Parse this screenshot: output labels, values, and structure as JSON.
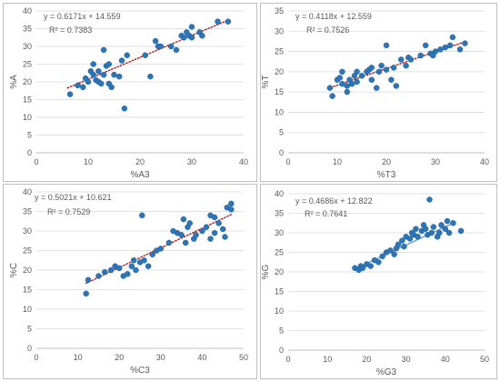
{
  "colors": {
    "point": "#2e75b6",
    "point_edge": "#1f5fa0",
    "trend": "#c00000",
    "trend_3": "#5b9bd5",
    "grid": "#d9d9d9",
    "axis": "#bfbfbf",
    "text": "#595959"
  },
  "chart_data": [
    {
      "type": "scatter",
      "equation": "y = 0.6171x + 14.559",
      "r2": "R² = 0.7383",
      "xlabel": "%A3",
      "ylabel": "%A",
      "xlim": [
        0,
        40
      ],
      "ylim": [
        0,
        40
      ],
      "xticks": [
        "0",
        "10",
        "20",
        "30",
        "40"
      ],
      "yticks": [
        "0",
        "5",
        "10",
        "15",
        "20",
        "25",
        "30",
        "35",
        "40"
      ],
      "trend": {
        "slope": 0.6171,
        "intercept": 14.559,
        "x_range": [
          6,
          37
        ],
        "style": "dotted"
      },
      "points": [
        [
          6.5,
          16.5
        ],
        [
          8,
          19
        ],
        [
          9,
          18.5
        ],
        [
          9.5,
          21
        ],
        [
          10,
          20
        ],
        [
          10.5,
          23
        ],
        [
          11,
          25
        ],
        [
          11,
          22
        ],
        [
          11.5,
          20.5
        ],
        [
          12,
          23
        ],
        [
          12,
          20
        ],
        [
          12.5,
          19.5
        ],
        [
          13,
          29
        ],
        [
          13,
          22
        ],
        [
          13.5,
          24.5
        ],
        [
          14,
          25
        ],
        [
          14,
          19.5
        ],
        [
          14.5,
          18.5
        ],
        [
          15,
          22
        ],
        [
          16,
          21.5
        ],
        [
          16.5,
          26
        ],
        [
          17,
          12.5
        ],
        [
          17.5,
          27.5
        ],
        [
          21,
          27.5
        ],
        [
          22,
          21.5
        ],
        [
          23,
          31.5
        ],
        [
          23.5,
          30
        ],
        [
          24,
          30
        ],
        [
          26,
          30
        ],
        [
          27,
          29
        ],
        [
          28,
          33
        ],
        [
          28.5,
          32.5
        ],
        [
          29,
          34
        ],
        [
          29.5,
          33
        ],
        [
          30,
          32.5
        ],
        [
          30,
          35.5
        ],
        [
          31.5,
          34
        ],
        [
          32,
          33
        ],
        [
          35,
          37
        ],
        [
          37,
          37
        ]
      ]
    },
    {
      "type": "scatter",
      "equation": "y = 0.4118x + 12.559",
      "r2": "R² = 0.7526",
      "xlabel": "%T3",
      "ylabel": "%T",
      "xlim": [
        0,
        40
      ],
      "ylim": [
        0,
        35
      ],
      "xticks": [
        "0",
        "10",
        "20",
        "30",
        "40"
      ],
      "yticks": [
        "0",
        "5",
        "10",
        "15",
        "20",
        "25",
        "30",
        "35"
      ],
      "trend": {
        "slope": 0.4118,
        "intercept": 12.559,
        "x_range": [
          8,
          36
        ],
        "style": "dotted"
      },
      "points": [
        [
          8.5,
          16
        ],
        [
          9,
          14
        ],
        [
          10,
          18
        ],
        [
          10.5,
          18.5
        ],
        [
          11,
          17
        ],
        [
          11,
          20
        ],
        [
          12,
          16.5
        ],
        [
          12,
          15
        ],
        [
          12.5,
          18
        ],
        [
          13,
          17
        ],
        [
          13.5,
          19
        ],
        [
          14,
          17.5
        ],
        [
          14,
          20
        ],
        [
          15,
          19
        ],
        [
          16,
          20
        ],
        [
          16.5,
          20.5
        ],
        [
          17,
          18
        ],
        [
          17,
          21
        ],
        [
          18,
          16
        ],
        [
          18.5,
          20
        ],
        [
          19,
          21.5
        ],
        [
          20,
          26.5
        ],
        [
          20,
          20.5
        ],
        [
          21,
          18
        ],
        [
          21.5,
          21
        ],
        [
          22,
          16.5
        ],
        [
          23,
          23
        ],
        [
          24,
          21.5
        ],
        [
          24.5,
          23.5
        ],
        [
          25,
          23
        ],
        [
          27,
          24
        ],
        [
          28,
          26.5
        ],
        [
          29,
          24.5
        ],
        [
          29.5,
          24
        ],
        [
          30,
          25
        ],
        [
          31,
          25.5
        ],
        [
          32,
          26
        ],
        [
          33,
          26.5
        ],
        [
          33.5,
          28.5
        ],
        [
          35,
          25.5
        ],
        [
          36,
          27
        ]
      ]
    },
    {
      "type": "scatter",
      "equation": "y = 0.5021x + 10.621",
      "r2": "R² = 0.7529",
      "xlabel": "%C3",
      "ylabel": "%C",
      "xlim": [
        0,
        50
      ],
      "ylim": [
        0,
        40
      ],
      "xticks": [
        "0",
        "10",
        "20",
        "30",
        "40",
        "50"
      ],
      "yticks": [
        "0",
        "5",
        "10",
        "15",
        "20",
        "25",
        "30",
        "35",
        "40"
      ],
      "trend": {
        "slope": 0.5021,
        "intercept": 10.621,
        "x_range": [
          12,
          47
        ],
        "style": "dotted"
      },
      "points": [
        [
          12,
          14
        ],
        [
          12.5,
          17.5
        ],
        [
          15,
          18.5
        ],
        [
          16.5,
          19.5
        ],
        [
          18,
          20
        ],
        [
          19,
          21
        ],
        [
          20,
          20.5
        ],
        [
          21,
          18.5
        ],
        [
          22,
          19
        ],
        [
          23,
          21
        ],
        [
          23.5,
          22.5
        ],
        [
          24,
          20
        ],
        [
          25,
          22
        ],
        [
          25.5,
          34
        ],
        [
          26,
          22.5
        ],
        [
          27,
          21
        ],
        [
          28,
          24
        ],
        [
          29,
          25
        ],
        [
          30,
          25.5
        ],
        [
          32,
          27
        ],
        [
          33,
          30
        ],
        [
          34,
          29.5
        ],
        [
          35,
          29
        ],
        [
          35.5,
          33
        ],
        [
          36,
          27
        ],
        [
          36.5,
          31
        ],
        [
          37,
          32
        ],
        [
          38,
          28
        ],
        [
          38.5,
          29
        ],
        [
          40,
          30
        ],
        [
          41,
          31
        ],
        [
          42,
          28
        ],
        [
          42,
          34
        ],
        [
          43,
          29.5
        ],
        [
          43,
          33.5
        ],
        [
          44,
          32
        ],
        [
          45,
          30.5
        ],
        [
          45.5,
          28.5
        ],
        [
          46,
          36
        ],
        [
          47,
          35.5
        ],
        [
          47,
          37
        ]
      ]
    },
    {
      "type": "scatter",
      "equation": "y = 0.4686x + 12.822",
      "r2": "R² = 0.7641",
      "xlabel": "%G3",
      "ylabel": "%G",
      "xlim": [
        0,
        50
      ],
      "ylim": [
        0,
        40
      ],
      "xticks": [
        "0",
        "10",
        "20",
        "30",
        "40",
        "50"
      ],
      "yticks": [
        "0",
        "5",
        "10",
        "15",
        "20",
        "25",
        "30",
        "35",
        "40"
      ],
      "trend": {
        "slope": 0.4686,
        "intercept": 12.822,
        "x_range": [
          17,
          42
        ],
        "style": "solid"
      },
      "points": [
        [
          17,
          21
        ],
        [
          18,
          20.5
        ],
        [
          18.5,
          21.5
        ],
        [
          19,
          21
        ],
        [
          20,
          22
        ],
        [
          21,
          21.5
        ],
        [
          22,
          23
        ],
        [
          23,
          22.5
        ],
        [
          24,
          24
        ],
        [
          25,
          25
        ],
        [
          26,
          25.5
        ],
        [
          27,
          24.5
        ],
        [
          27.5,
          26
        ],
        [
          28,
          27
        ],
        [
          29,
          28
        ],
        [
          29.5,
          26.5
        ],
        [
          30,
          29
        ],
        [
          31,
          28.5
        ],
        [
          31.5,
          30
        ],
        [
          32,
          29.5
        ],
        [
          32.5,
          31
        ],
        [
          33,
          29
        ],
        [
          34,
          30.5
        ],
        [
          34.5,
          32
        ],
        [
          35,
          31
        ],
        [
          35.5,
          29.5
        ],
        [
          36,
          38.5
        ],
        [
          36.5,
          30
        ],
        [
          37,
          31.5
        ],
        [
          38,
          29
        ],
        [
          38.5,
          30
        ],
        [
          39,
          32
        ],
        [
          40,
          31
        ],
        [
          40.5,
          33
        ],
        [
          41,
          30
        ],
        [
          42,
          32.5
        ],
        [
          44,
          30.5
        ]
      ]
    }
  ]
}
